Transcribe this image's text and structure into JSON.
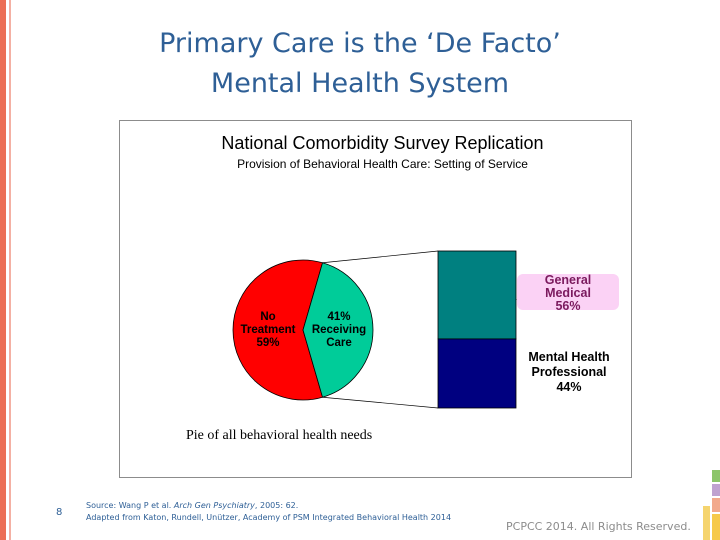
{
  "slide": {
    "title_line1": "Primary Care is the ‘De Facto’",
    "title_line2": "Mental Health System",
    "page_number": "8",
    "source_line1_prefix": "Source: Wang P et al. ",
    "source_line1_journal": "Arch Gen Psychiatry",
    "source_line1_suffix": ", 2005: 62.",
    "source_line2": "Adapted from Katon, Rundell, Unützer, Academy of PSM Integrated Behavioral Health 2014",
    "copyright": "PCPCC 2014. All Rights Reserved."
  },
  "colors": {
    "title": "#2e5f96",
    "no_treatment": "#ff0000",
    "receiving_care": "#00cc99",
    "general_medical": "#008080",
    "mental_health": "#000080",
    "general_medical_label_bg": "#fbd2f5"
  },
  "chart_data": {
    "type": "pie",
    "title": "National Comorbidity Survey Replication",
    "subtitle": "Provision of Behavioral Health Care:  Setting of Service",
    "caption": "Pie of all behavioral health needs",
    "pie": {
      "slices": [
        {
          "label_lines": [
            "No",
            "Treatment",
            "59%"
          ],
          "value": 59
        },
        {
          "label_lines": [
            "41%",
            "Receiving",
            "Care"
          ],
          "value": 41
        }
      ]
    },
    "breakdown": {
      "of_slice": "Receiving Care",
      "segments": [
        {
          "label_lines": [
            "General",
            "Medical",
            "56%"
          ],
          "value": 56
        },
        {
          "label_lines": [
            "Mental Health",
            "Professional",
            "44%"
          ],
          "value": 44
        }
      ]
    }
  }
}
